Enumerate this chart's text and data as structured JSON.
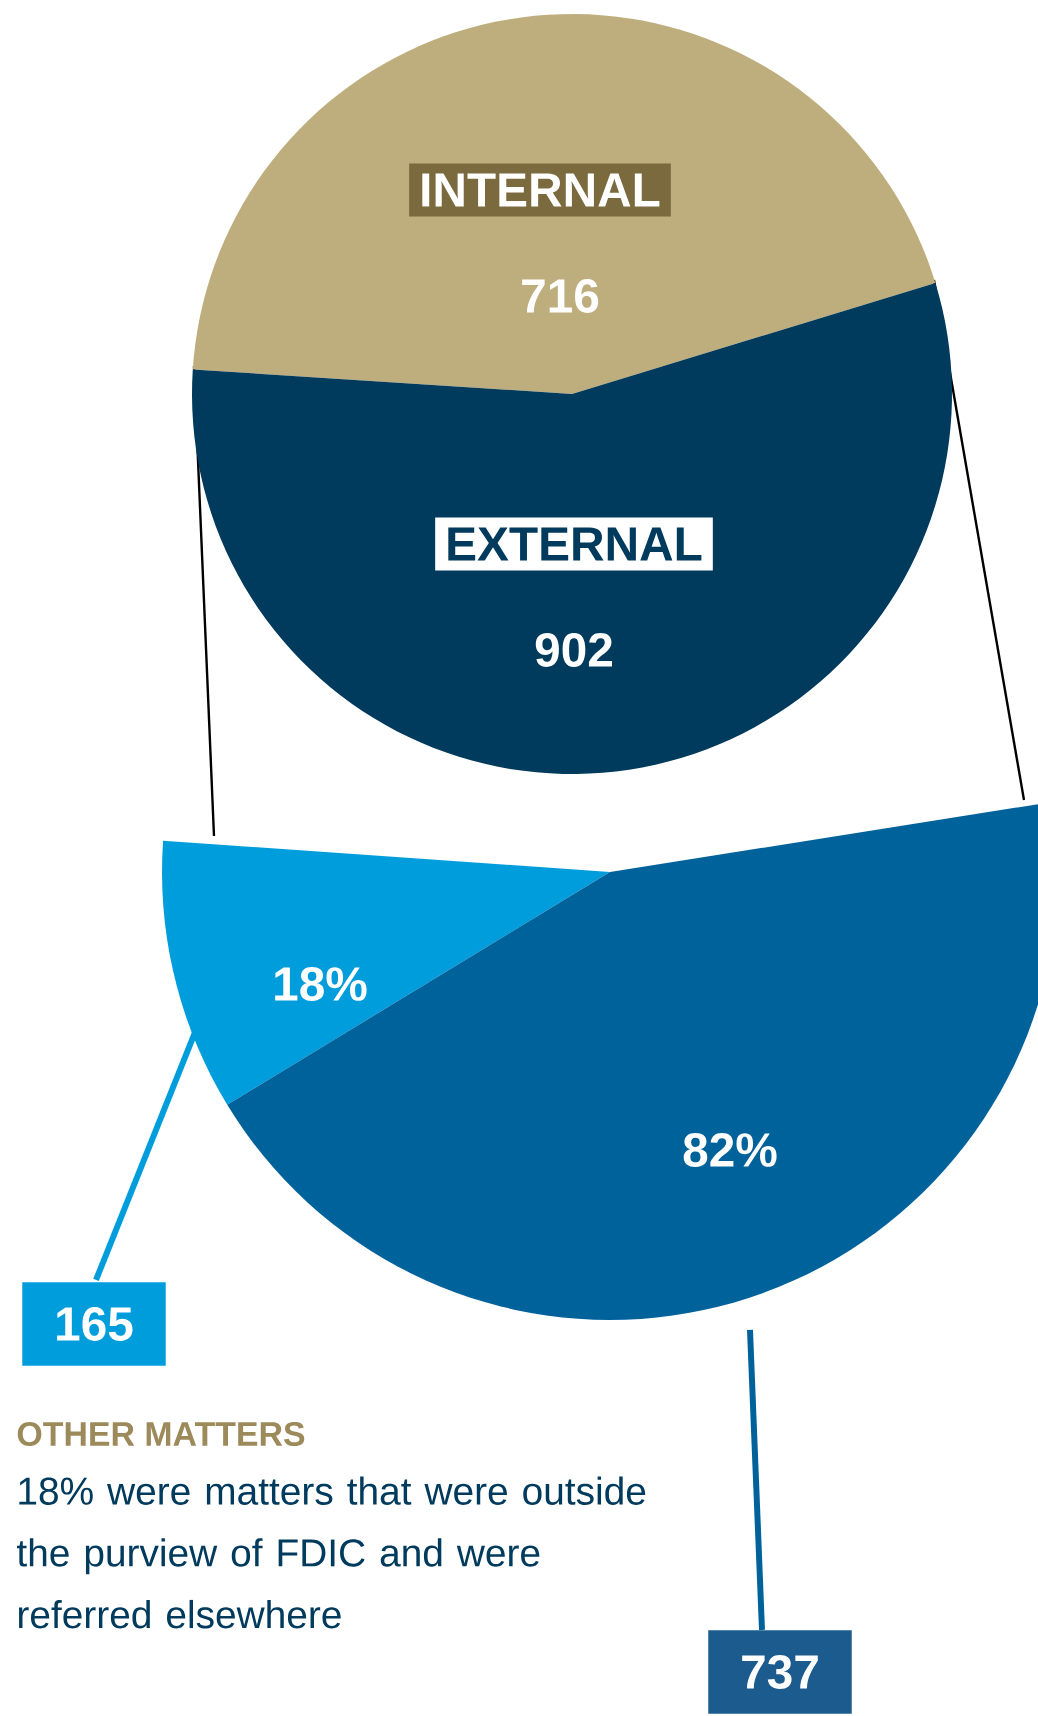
{
  "chart_data": [
    {
      "type": "pie",
      "categories": [
        "INTERNAL",
        "EXTERNAL"
      ],
      "values": [
        716,
        902
      ],
      "colors": [
        "#bfae7d",
        "#003a5c"
      ],
      "value_labels": [
        "716",
        "902"
      ]
    },
    {
      "type": "pie",
      "categories": [
        null,
        null
      ],
      "values": [
        165,
        737
      ],
      "colors": [
        "#009ddc",
        "#00629b"
      ],
      "value_labels": [
        "165",
        "737"
      ],
      "annotations": [
        "18%",
        "82%",
        "OTHER MATTERS",
        "18% were matters that were outside the purview of FDIC and were referred elsewhere"
      ]
    }
  ]
}
